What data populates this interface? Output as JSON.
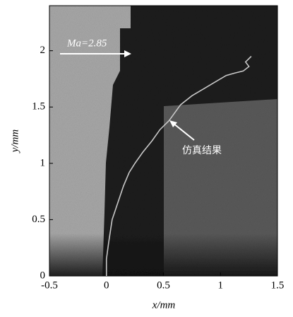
{
  "chart_data": {
    "type": "line",
    "xlabel": "x/mm",
    "ylabel": "y/mm",
    "annotations": [
      "Ma=2.85",
      "仿真结果"
    ],
    "x": [
      0,
      0,
      0.02,
      0.05,
      0.1,
      0.15,
      0.2,
      0.25,
      0.32,
      0.4,
      0.47,
      0.55,
      0.6,
      0.65,
      0.75,
      0.85,
      0.95,
      1.05,
      1.12,
      1.2,
      1.25,
      1.22,
      1.27
    ],
    "series": [
      {
        "color": "#c8c8c8",
        "values": [
          0,
          0.15,
          0.3,
          0.5,
          0.65,
          0.8,
          0.92,
          1.0,
          1.1,
          1.2,
          1.3,
          1.38,
          1.45,
          1.52,
          1.6,
          1.66,
          1.72,
          1.78,
          1.8,
          1.82,
          1.86,
          1.9,
          1.95
        ]
      }
    ],
    "xlim": [
      -0.5,
      1.5
    ],
    "ylim": [
      0,
      2.4
    ],
    "xticks": [
      -0.5,
      0,
      0.5,
      1,
      1.5
    ],
    "yticks": [
      0,
      0.5,
      1,
      1.5,
      2
    ]
  }
}
